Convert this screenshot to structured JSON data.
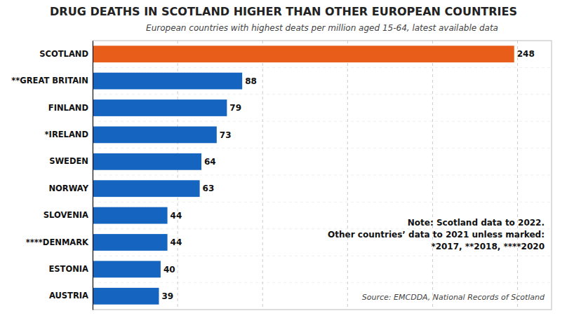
{
  "chart_data": {
    "type": "bar",
    "orientation": "horizontal",
    "title": "DRUG DEATHS IN SCOTLAND HIGHER THAN OTHER EUROPEAN COUNTRIES",
    "subtitle": "European countries with highest deats per million aged 15-64, latest available data",
    "annotations": [
      "Note: Scotland data to 2022.\nOther countries’ data to 2021 unless marked:\n*2017, **2018, ****2020",
      "Source: EMCDDA, National Records of Scotland"
    ],
    "categories": [
      "SCOTLAND",
      "**GREAT BRITAIN",
      "FINLAND",
      "*IRELAND",
      "SWEDEN",
      "NORWAY",
      "SLOVENIA",
      "****DENMARK",
      "ESTONIA",
      "AUSTRIA"
    ],
    "values": [
      248,
      88,
      79,
      73,
      64,
      63,
      44,
      44,
      40,
      39
    ],
    "colors": [
      "#E85D1A",
      "#1565C0",
      "#1565C0",
      "#1565C0",
      "#1565C0",
      "#1565C0",
      "#1565C0",
      "#1565C0",
      "#1565C0",
      "#1565C0"
    ],
    "xlim": [
      0,
      270
    ],
    "xticks": [
      50,
      100,
      150,
      200,
      250
    ],
    "grid": true,
    "data_labels": true,
    "tick_labels": "y"
  }
}
